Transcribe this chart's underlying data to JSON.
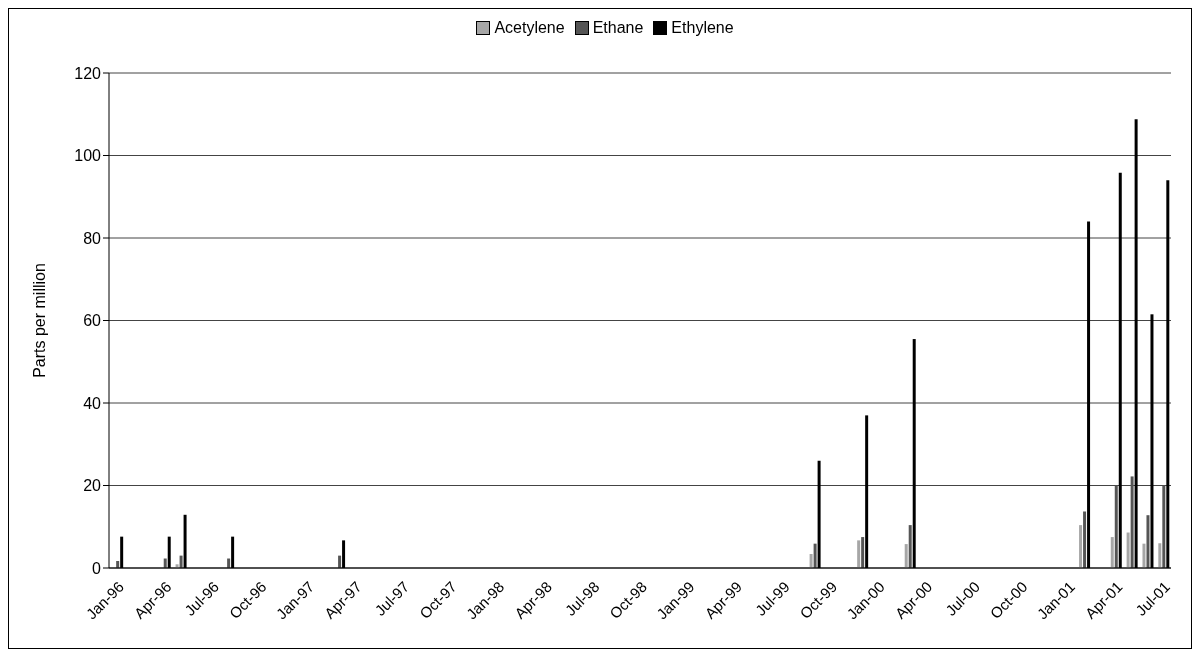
{
  "chart_data": {
    "type": "bar",
    "categories": [
      "Jan-96",
      null,
      null,
      "Apr-96",
      null,
      null,
      "Jul-96",
      null,
      null,
      "Oct-96",
      null,
      null,
      "Jan-97",
      null,
      null,
      "Apr-97",
      null,
      null,
      "Jul-97",
      null,
      null,
      "Oct-97",
      null,
      null,
      "Jan-98",
      null,
      null,
      "Apr-98",
      null,
      null,
      "Jul-98",
      null,
      null,
      "Oct-98",
      null,
      null,
      "Jan-99",
      null,
      null,
      "Apr-99",
      null,
      null,
      "Jul-99",
      null,
      null,
      "Oct-99",
      null,
      null,
      "Jan-00",
      null,
      null,
      "Apr-00",
      null,
      null,
      "Jul-00",
      null,
      null,
      "Oct-00",
      null,
      null,
      "Jan-01",
      null,
      null,
      "Apr-01",
      null,
      null,
      "Jul-01"
    ],
    "series": [
      {
        "name": "Acetylene",
        "color": "#a6a6a6",
        "values": [
          null,
          null,
          null,
          null,
          0.9,
          null,
          null,
          null,
          null,
          null,
          null,
          null,
          null,
          null,
          null,
          null,
          null,
          null,
          null,
          null,
          null,
          null,
          null,
          null,
          null,
          null,
          null,
          null,
          null,
          null,
          null,
          null,
          null,
          null,
          null,
          null,
          null,
          null,
          null,
          null,
          null,
          null,
          null,
          null,
          3.4,
          null,
          null,
          6.7,
          null,
          null,
          5.8,
          null,
          null,
          null,
          null,
          null,
          null,
          null,
          null,
          null,
          null,
          10.4,
          null,
          7.5,
          8.6,
          5.9,
          6
        ]
      },
      {
        "name": "Ethane",
        "color": "#555555",
        "values": [
          1.7,
          null,
          null,
          2.3,
          3,
          null,
          null,
          2.3,
          null,
          null,
          null,
          null,
          null,
          null,
          3,
          null,
          null,
          null,
          null,
          null,
          null,
          null,
          null,
          null,
          null,
          null,
          null,
          null,
          null,
          null,
          null,
          null,
          null,
          null,
          null,
          null,
          null,
          null,
          null,
          null,
          null,
          null,
          null,
          null,
          5.9,
          null,
          null,
          7.5,
          null,
          null,
          10.4,
          null,
          null,
          null,
          null,
          null,
          null,
          null,
          null,
          null,
          null,
          13.7,
          null,
          20,
          22.2,
          12.8,
          20
        ]
      },
      {
        "name": "Ethylene",
        "color": "#000000",
        "values": [
          7.6,
          null,
          null,
          7.6,
          12.9,
          null,
          null,
          7.6,
          null,
          null,
          null,
          null,
          null,
          null,
          6.7,
          null,
          null,
          null,
          null,
          null,
          null,
          null,
          null,
          null,
          null,
          null,
          null,
          null,
          null,
          null,
          null,
          null,
          null,
          null,
          null,
          null,
          null,
          null,
          null,
          null,
          null,
          null,
          null,
          null,
          26,
          null,
          null,
          37,
          null,
          null,
          55.5,
          null,
          null,
          null,
          null,
          null,
          null,
          null,
          null,
          null,
          null,
          84,
          null,
          95.8,
          108.8,
          61.5,
          94
        ]
      }
    ],
    "ylabel": "Parts per million",
    "ylim": [
      0,
      120
    ],
    "yticks": [
      0,
      20,
      40,
      60,
      80,
      100,
      120
    ],
    "grid": "y",
    "legend": "top"
  }
}
